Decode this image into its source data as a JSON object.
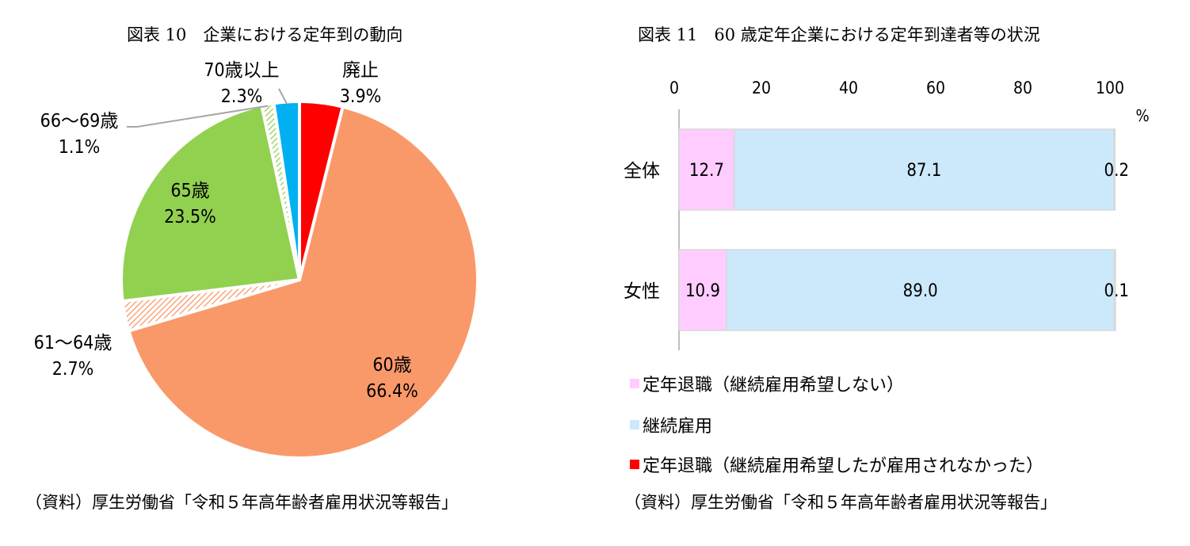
{
  "left": {
    "title": "図表 10　企業における定年到の動向",
    "source": "（資料）厚生労働省「令和５年高年齢者雇用状況等報告」"
  },
  "right": {
    "title": "図表 11　60 歳定年企業における定年到達者等の状況",
    "source": "（資料）厚生労働省「令和５年高年齢者雇用状況等報告」",
    "unit": "%"
  },
  "chart_data": [
    {
      "type": "pie",
      "title": "図表 10　企業における定年到の動向",
      "slices": [
        {
          "label": "廃止",
          "value": 3.9,
          "value_label": "3.9%",
          "color": "#ff0000"
        },
        {
          "label": "60歳",
          "value": 66.4,
          "value_label": "66.4%",
          "color": "#f9996a"
        },
        {
          "label": "61～64歳",
          "value": 2.7,
          "value_label": "2.7%",
          "color": "#f9996a",
          "pattern": "hatched"
        },
        {
          "label": "65歳",
          "value": 23.5,
          "value_label": "23.5%",
          "color": "#92d050"
        },
        {
          "label": "66～69歳",
          "value": 1.1,
          "value_label": "1.1%",
          "color": "#92d050",
          "pattern": "hatched"
        },
        {
          "label": "70歳以上",
          "value": 2.3,
          "value_label": "2.3%",
          "color": "#00b0f0"
        }
      ]
    },
    {
      "type": "bar",
      "orientation": "horizontal",
      "stacked": true,
      "title": "図表 11　60 歳定年企業における定年到達者等の状況",
      "categories": [
        "全体",
        "女性"
      ],
      "xlim": [
        0,
        100
      ],
      "xticks": [
        0,
        20,
        40,
        60,
        80,
        100
      ],
      "xtick_labels": [
        "0",
        "20",
        "40",
        "60",
        "80",
        "100"
      ],
      "xlabel": "%",
      "grid": false,
      "legend_position": "bottom-left",
      "series": [
        {
          "name": "定年退職（継続雇用希望しない）",
          "values": [
            12.7,
            10.9
          ],
          "labels": [
            "12.7",
            "10.9"
          ],
          "color": "#ffccff"
        },
        {
          "name": "継続雇用",
          "values": [
            87.1,
            89.0
          ],
          "labels": [
            "87.1",
            "89.0"
          ],
          "color": "#cce8fb"
        },
        {
          "name": "定年退職（継続雇用希望したが雇用されなかった）",
          "values": [
            0.2,
            0.1
          ],
          "labels": [
            "0.2",
            "0.1"
          ],
          "color": "#ff0000"
        }
      ]
    }
  ]
}
